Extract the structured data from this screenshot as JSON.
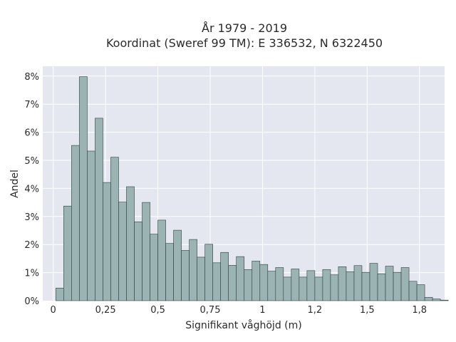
{
  "chart_data": {
    "type": "bar",
    "title_line1": "År 1979 - 2019",
    "title_line2": "Koordinat (Sweref 99 TM): E 336532, N 6322450",
    "xlabel": "Signifikant våghöjd (m)",
    "ylabel": "Andel",
    "xlim": [
      -0.05,
      1.87
    ],
    "ylim": [
      0,
      0.0835
    ],
    "x_ticks": [
      0,
      0.25,
      0.5,
      0.75,
      1,
      1.25,
      1.5,
      1.75
    ],
    "x_tick_labels": [
      "0",
      "0,25",
      "0,5",
      "0,75",
      "1",
      "1,2",
      "1,5",
      "1,8"
    ],
    "y_ticks": [
      0,
      0.01,
      0.02,
      0.03,
      0.04,
      0.05,
      0.06,
      0.07,
      0.08
    ],
    "y_tick_labels": [
      "0%",
      "1%",
      "2%",
      "3%",
      "4%",
      "5%",
      "6%",
      "7%",
      "8%"
    ],
    "bin_start": 0.0125,
    "bin_width": 0.0375,
    "values": [
      0.0045,
      0.0337,
      0.0553,
      0.0798,
      0.0533,
      0.065,
      0.0421,
      0.0511,
      0.0351,
      0.0406,
      0.0281,
      0.035,
      0.0237,
      0.0287,
      0.0204,
      0.0251,
      0.0179,
      0.0218,
      0.0155,
      0.0201,
      0.0135,
      0.0172,
      0.0126,
      0.0157,
      0.0111,
      0.0141,
      0.0129,
      0.0105,
      0.0118,
      0.0084,
      0.0113,
      0.0084,
      0.0107,
      0.0084,
      0.0111,
      0.0092,
      0.0121,
      0.0103,
      0.0125,
      0.0101,
      0.0133,
      0.0096,
      0.0123,
      0.0101,
      0.0118,
      0.0069,
      0.0057,
      0.0012,
      0.0006,
      0.0002
    ],
    "grid": true,
    "colors": {
      "bar_fill": "#9cb3b3",
      "bar_stroke": "#2e3f3f",
      "plot_bg": "#e5e7f0",
      "grid": "#ffffff"
    }
  }
}
